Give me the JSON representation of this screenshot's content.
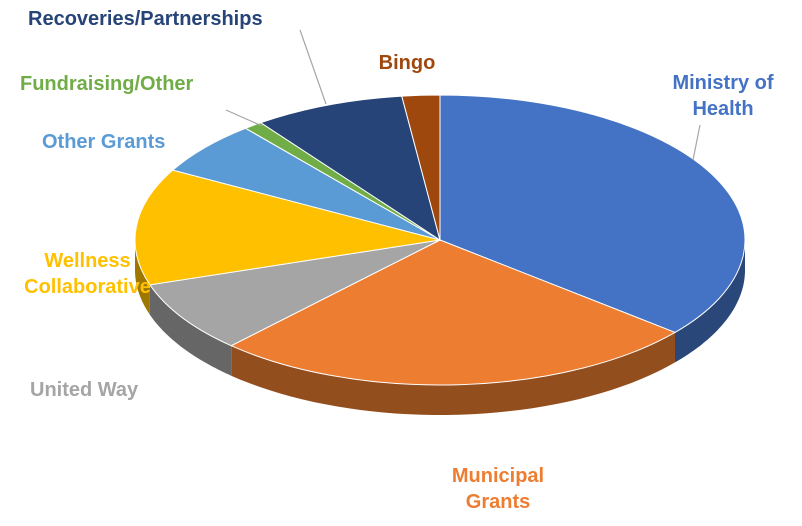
{
  "chart_data": {
    "type": "pie3d",
    "categories": [
      "Ministry of Health",
      "Municipal Grants",
      "United Way",
      "Wellness Collaborative",
      "Other Grants",
      "Fundraising/Other",
      "Recoveries/Partnerships",
      "Bingo"
    ],
    "values": [
      36,
      26,
      8,
      13,
      6,
      1,
      8,
      2
    ],
    "colors": [
      "#4472c4",
      "#ed7d31",
      "#a5a5a5",
      "#ffc000",
      "#5b9bd5",
      "#70ad47",
      "#264478",
      "#9e480e"
    ]
  }
}
